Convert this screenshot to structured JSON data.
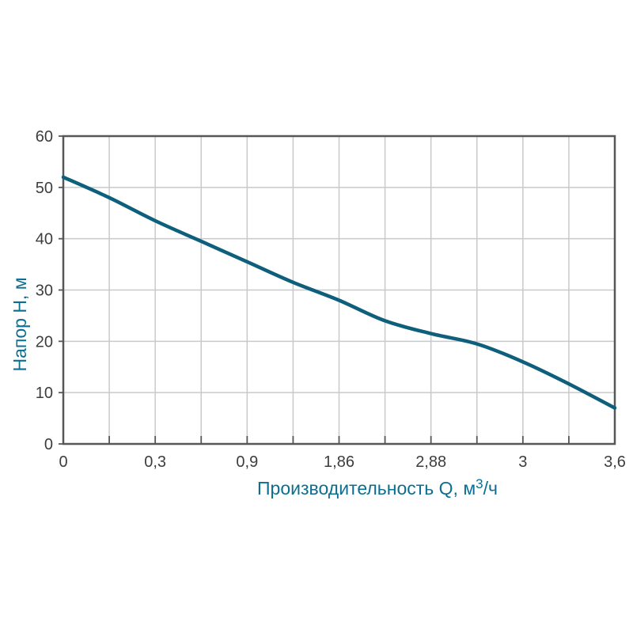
{
  "page": {
    "background": "#ffffff"
  },
  "chart_data": {
    "type": "line",
    "title": "",
    "xlabel_main": "Производительность Q, м",
    "xlabel_sup": "3",
    "xlabel_rest": "/ч",
    "xlabel_full": "Производительность Q, м³/ч",
    "ylabel": "Напор Н, м",
    "x_axis": {
      "tick_labels": [
        "0",
        "0,3",
        "0,9",
        "1,86",
        "2,88",
        "3",
        "3,6"
      ],
      "tick_values": [
        0,
        0.3,
        0.9,
        1.86,
        2.88,
        3,
        3.6
      ],
      "total_tick_slots": 13,
      "labeled_every_nth_slot": 2,
      "minor_tick_between_labels": true
    },
    "y_axis": {
      "tick_values": [
        0,
        10,
        20,
        30,
        40,
        50,
        60
      ],
      "range": [
        0,
        60
      ]
    },
    "grid": true,
    "legend": false,
    "series": [
      {
        "name": "pump-head-curve",
        "points_slot_h": [
          [
            0,
            52
          ],
          [
            1,
            48
          ],
          [
            2,
            43.5
          ],
          [
            3,
            39.5
          ],
          [
            4,
            35.5
          ],
          [
            5,
            31.5
          ],
          [
            6,
            28
          ],
          [
            7,
            24
          ],
          [
            8,
            21.5
          ],
          [
            9,
            19.5
          ],
          [
            10,
            16
          ],
          [
            11,
            11.7
          ],
          [
            12,
            7
          ]
        ],
        "h_at_labeled_q": {
          "0": 52,
          "0,3": 43.5,
          "0,9": 35.5,
          "1,86": 28,
          "2,88": 21.5,
          "3": 16,
          "3,6": 7
        }
      }
    ],
    "colors": {
      "curve": "#0d5f7b",
      "axis": "#57575a",
      "grid": "#c8c9cb",
      "tick_text": "#3d3d3f",
      "title_text": "#0c6e90"
    }
  }
}
